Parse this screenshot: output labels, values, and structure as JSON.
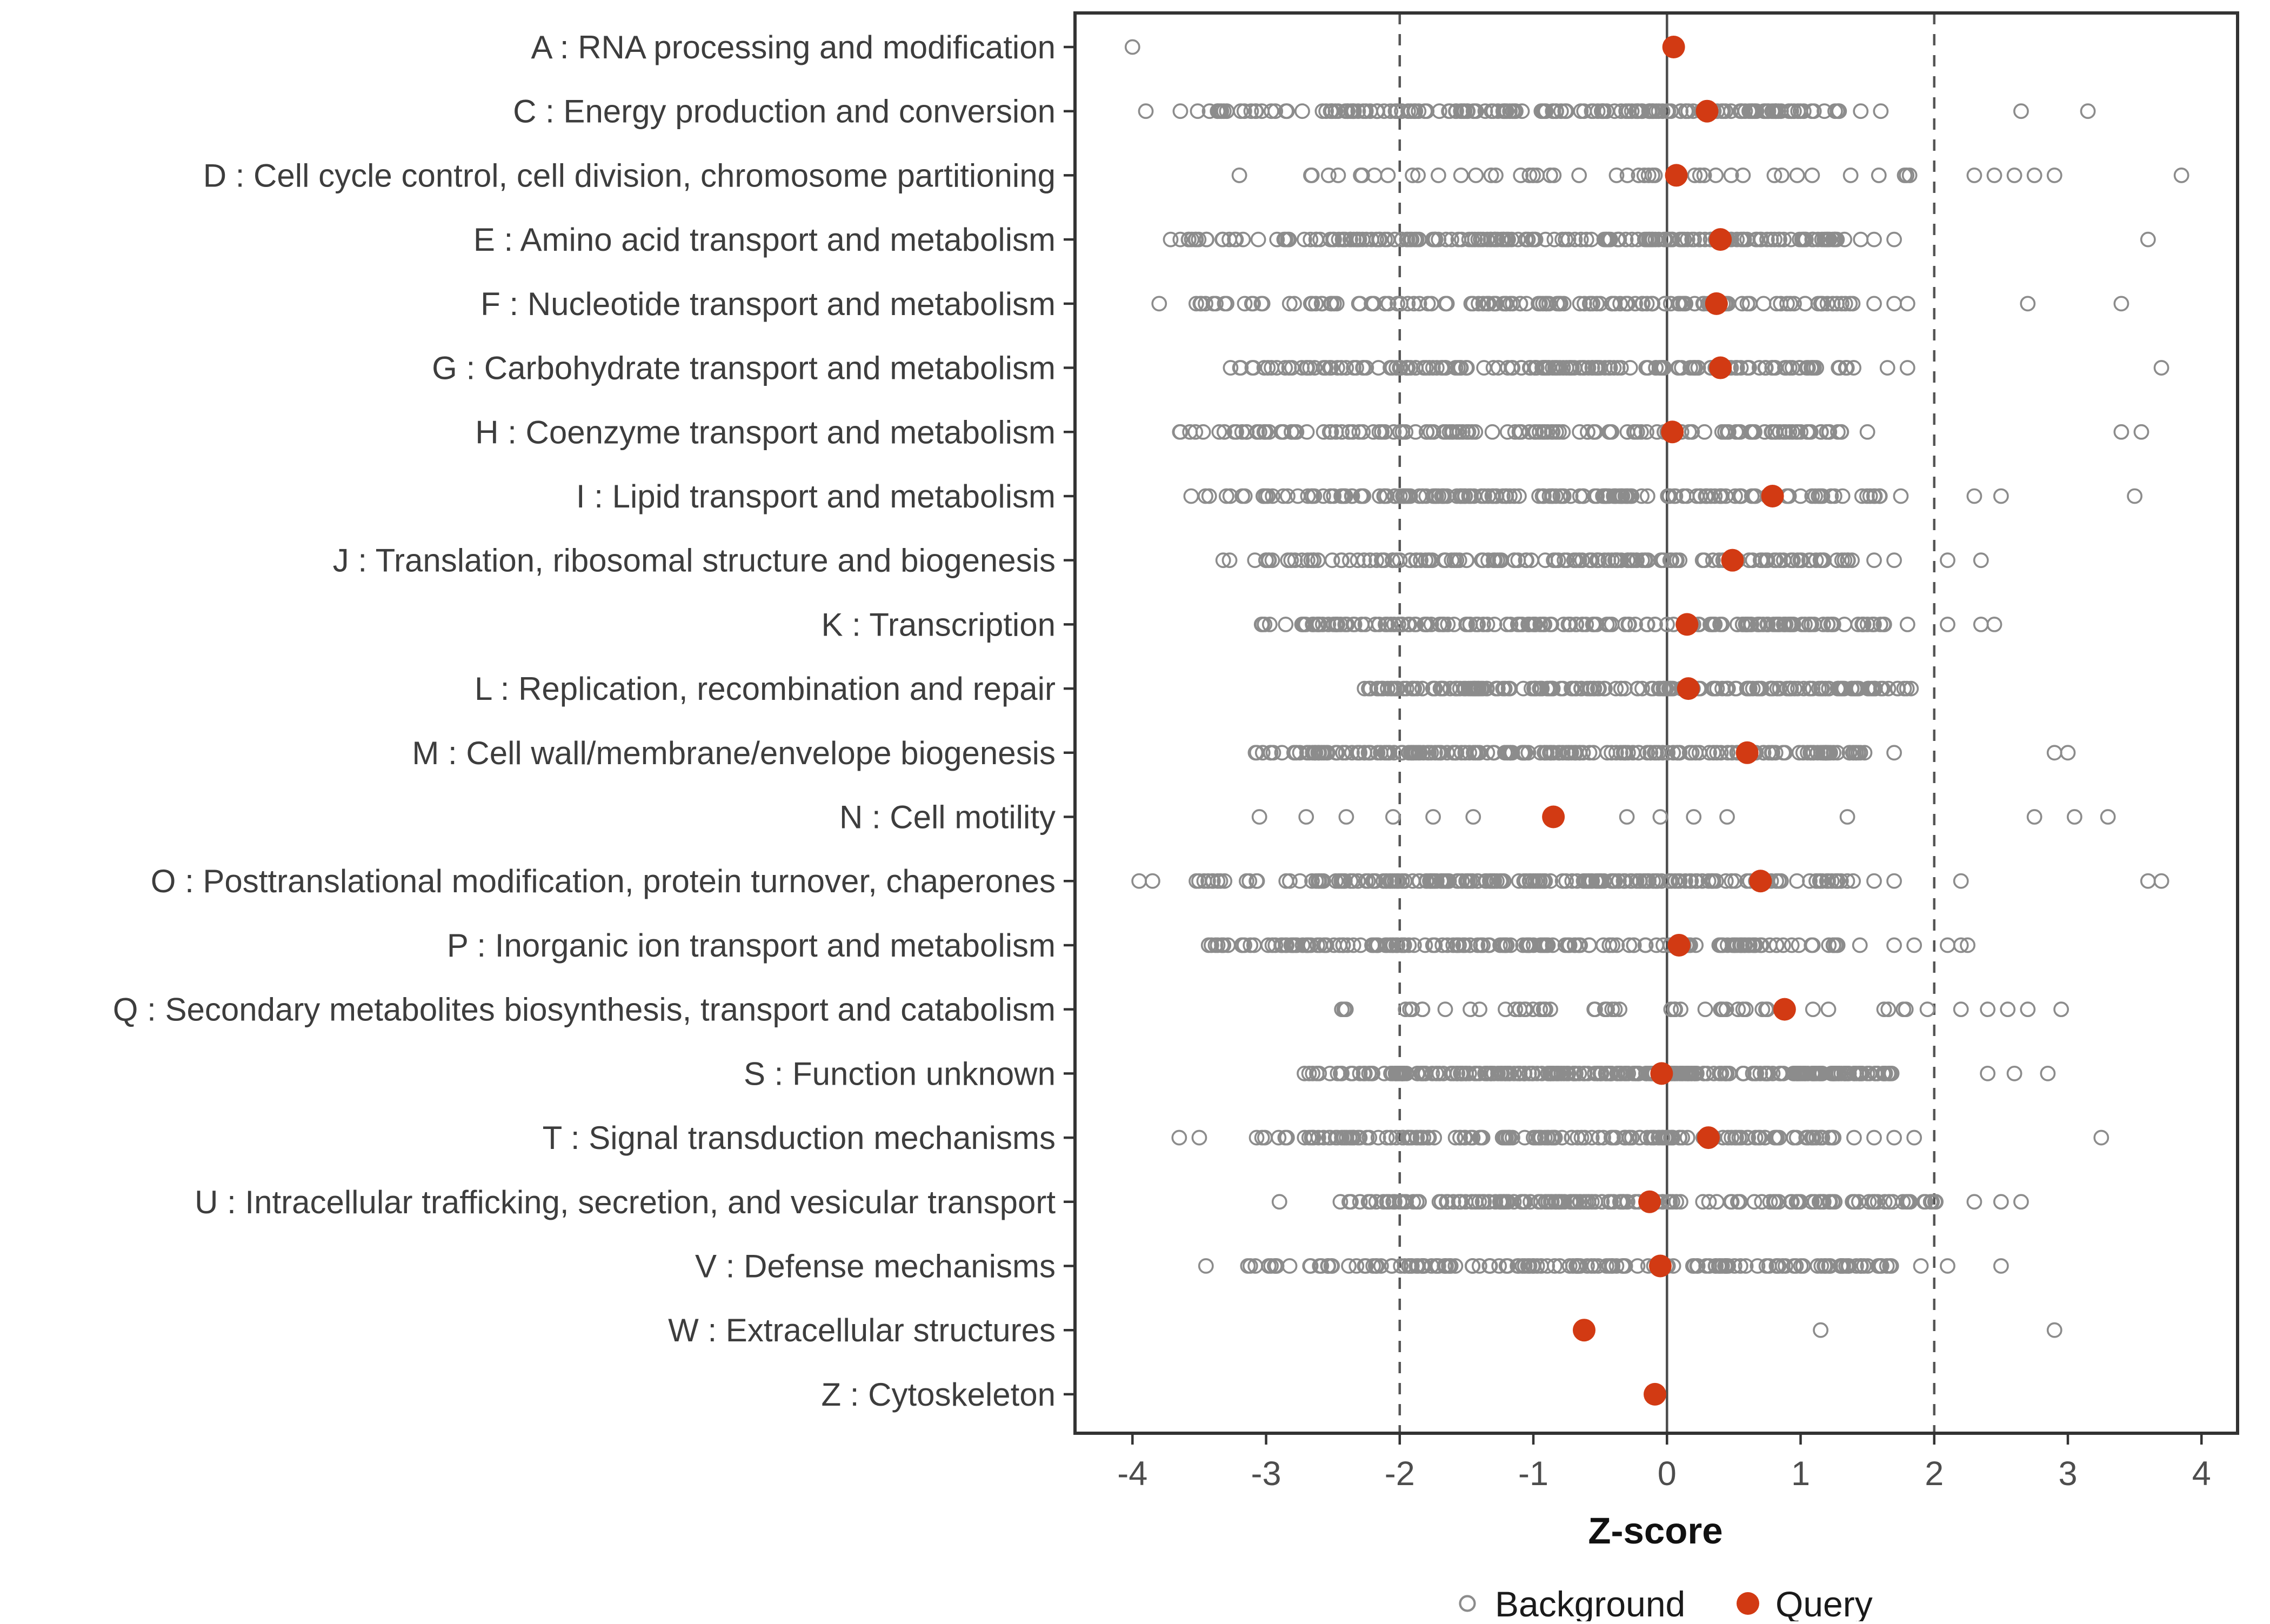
{
  "chart_data": {
    "type": "scatter",
    "title": "",
    "xlabel": "Z-score",
    "ylabel": "",
    "xlim": [
      -4.43,
      4.27
    ],
    "x_ticks": [
      -4,
      -3,
      -2,
      -1,
      0,
      1,
      2,
      3,
      4
    ],
    "grid": false,
    "reference_lines": {
      "solid": [
        0
      ],
      "dashed": [
        -2,
        2
      ]
    },
    "legend_position": "bottom",
    "legend": [
      {
        "label": "Background",
        "marker": "open-circle",
        "color": "#8c8c8c"
      },
      {
        "label": "Query",
        "marker": "filled-circle",
        "color": "#D23A13"
      }
    ],
    "colors": {
      "background_point": "#8c8c8c",
      "query_point": "#D23A13",
      "panel_border": "#333333",
      "reference_line": "#555555",
      "zero_line": "#4d4d4d"
    },
    "categories": [
      {
        "label": "A : RNA processing and modification",
        "query": 0.05,
        "background": {
          "bands": [],
          "outliers": [
            -4.0
          ]
        }
      },
      {
        "label": "C : Energy production and conversion",
        "query": 0.3,
        "background": {
          "bands": [
            [
              -3.65,
              -2.5,
              26
            ],
            [
              -2.5,
              1.3,
              150
            ]
          ],
          "outliers": [
            -3.9,
            1.45,
            1.6,
            2.65,
            3.15
          ]
        }
      },
      {
        "label": "D : Cell cycle control, cell division, chromosome partitioning",
        "query": 0.07,
        "background": {
          "bands": [
            [
              -2.7,
              2.1,
              46
            ]
          ],
          "outliers": [
            -3.2,
            2.3,
            2.45,
            2.6,
            2.75,
            2.9,
            3.85
          ]
        }
      },
      {
        "label": "E : Amino acid transport and metabolism",
        "query": 0.4,
        "background": {
          "bands": [
            [
              -3.75,
              -2.9,
              18
            ],
            [
              -2.9,
              1.35,
              170
            ]
          ],
          "outliers": [
            1.45,
            1.55,
            1.7,
            3.6
          ]
        }
      },
      {
        "label": "F : Nucleotide transport and metabolism",
        "query": 0.37,
        "background": {
          "bands": [
            [
              -3.55,
              -2.8,
              14
            ],
            [
              -2.8,
              1.4,
              120
            ]
          ],
          "outliers": [
            -3.8,
            1.55,
            1.7,
            1.8,
            2.7,
            3.4
          ]
        }
      },
      {
        "label": "G : Carbohydrate transport and metabolism",
        "query": 0.4,
        "background": {
          "bands": [
            [
              -3.3,
              -2.85,
              10
            ],
            [
              -2.85,
              1.5,
              150
            ]
          ],
          "outliers": [
            1.65,
            1.8,
            3.7
          ]
        }
      },
      {
        "label": "H : Coenzyme transport and metabolism",
        "query": 0.04,
        "background": {
          "bands": [
            [
              -3.65,
              -3.25,
              8
            ],
            [
              -3.25,
              1.35,
              140
            ]
          ],
          "outliers": [
            1.5,
            3.4,
            3.55
          ]
        }
      },
      {
        "label": "I : Lipid transport and metabolism",
        "query": 0.79,
        "background": {
          "bands": [
            [
              -3.6,
              -2.9,
              12
            ],
            [
              -2.9,
              1.6,
              150
            ]
          ],
          "outliers": [
            1.75,
            2.3,
            2.5,
            3.5
          ]
        }
      },
      {
        "label": "J : Translation, ribosomal structure and biogenesis",
        "query": 0.49,
        "background": {
          "bands": [
            [
              -3.35,
              -2.7,
              12
            ],
            [
              -2.7,
              1.4,
              140
            ]
          ],
          "outliers": [
            1.55,
            1.7,
            2.1,
            2.35
          ]
        }
      },
      {
        "label": "K : Transcription",
        "query": 0.15,
        "background": {
          "bands": [
            [
              -3.05,
              1.65,
              170
            ]
          ],
          "outliers": [
            1.8,
            2.1,
            2.35,
            2.45
          ]
        }
      },
      {
        "label": "L : Replication, recombination and repair",
        "query": 0.16,
        "background": {
          "bands": [
            [
              -2.3,
              1.85,
              210
            ]
          ],
          "outliers": []
        }
      },
      {
        "label": "M : Cell wall/membrane/envelope biogenesis",
        "query": 0.6,
        "background": {
          "bands": [
            [
              -3.1,
              -2.7,
              10
            ],
            [
              -2.7,
              1.5,
              190
            ]
          ],
          "outliers": [
            1.7,
            2.9,
            3.0
          ]
        }
      },
      {
        "label": "N : Cell motility",
        "query": -0.85,
        "background": {
          "bands": [],
          "outliers": [
            -3.05,
            -2.7,
            -2.4,
            -2.05,
            -1.75,
            -1.45,
            -0.3,
            -0.05,
            0.2,
            0.45,
            1.35,
            2.75,
            3.05,
            3.3
          ]
        }
      },
      {
        "label": "O : Posttranslational modification, protein turnover, chaperones",
        "query": 0.7,
        "background": {
          "bands": [
            [
              -3.6,
              -2.6,
              20
            ],
            [
              -2.6,
              1.4,
              180
            ]
          ],
          "outliers": [
            -3.95,
            -3.85,
            1.55,
            1.7,
            2.2,
            3.6,
            3.7
          ]
        }
      },
      {
        "label": "P : Inorganic ion transport and metabolism",
        "query": 0.09,
        "background": {
          "bands": [
            [
              -3.5,
              -2.9,
              16
            ],
            [
              -2.9,
              1.5,
              150
            ]
          ],
          "outliers": [
            1.7,
            1.85,
            2.1,
            2.2,
            2.25
          ]
        }
      },
      {
        "label": "Q : Secondary metabolites biosynthesis, transport and catabolism",
        "query": 0.88,
        "background": {
          "bands": [
            [
              -2.5,
              2.0,
              52
            ]
          ],
          "outliers": [
            2.2,
            2.4,
            2.55,
            2.7,
            2.95
          ]
        }
      },
      {
        "label": "S : Function unknown",
        "query": -0.04,
        "background": {
          "bands": [
            [
              -2.8,
              -2.0,
              24
            ],
            [
              -2.0,
              1.7,
              230
            ]
          ],
          "outliers": [
            2.4,
            2.6,
            2.85
          ]
        }
      },
      {
        "label": "T : Signal transduction mechanisms",
        "query": 0.31,
        "background": {
          "bands": [
            [
              -3.15,
              -2.6,
              12
            ],
            [
              -2.6,
              1.25,
              150
            ]
          ],
          "outliers": [
            -3.65,
            -3.5,
            1.4,
            1.55,
            1.7,
            1.85,
            3.25
          ]
        }
      },
      {
        "label": "U : Intracellular trafficking, secretion, and vesicular transport",
        "query": -0.13,
        "background": {
          "bands": [
            [
              -2.45,
              2.05,
              160
            ]
          ],
          "outliers": [
            -2.9,
            2.3,
            2.5,
            2.65
          ]
        }
      },
      {
        "label": "V : Defense mechanisms",
        "query": -0.05,
        "background": {
          "bands": [
            [
              -3.15,
              -2.3,
              20
            ],
            [
              -2.3,
              1.7,
              140
            ]
          ],
          "outliers": [
            -3.45,
            1.9,
            2.1,
            2.5
          ]
        }
      },
      {
        "label": "W : Extracellular structures",
        "query": -0.62,
        "background": {
          "bands": [],
          "outliers": [
            1.15,
            2.9
          ]
        }
      },
      {
        "label": "Z : Cytoskeleton",
        "query": -0.09,
        "background": {
          "bands": [],
          "outliers": []
        }
      }
    ]
  }
}
